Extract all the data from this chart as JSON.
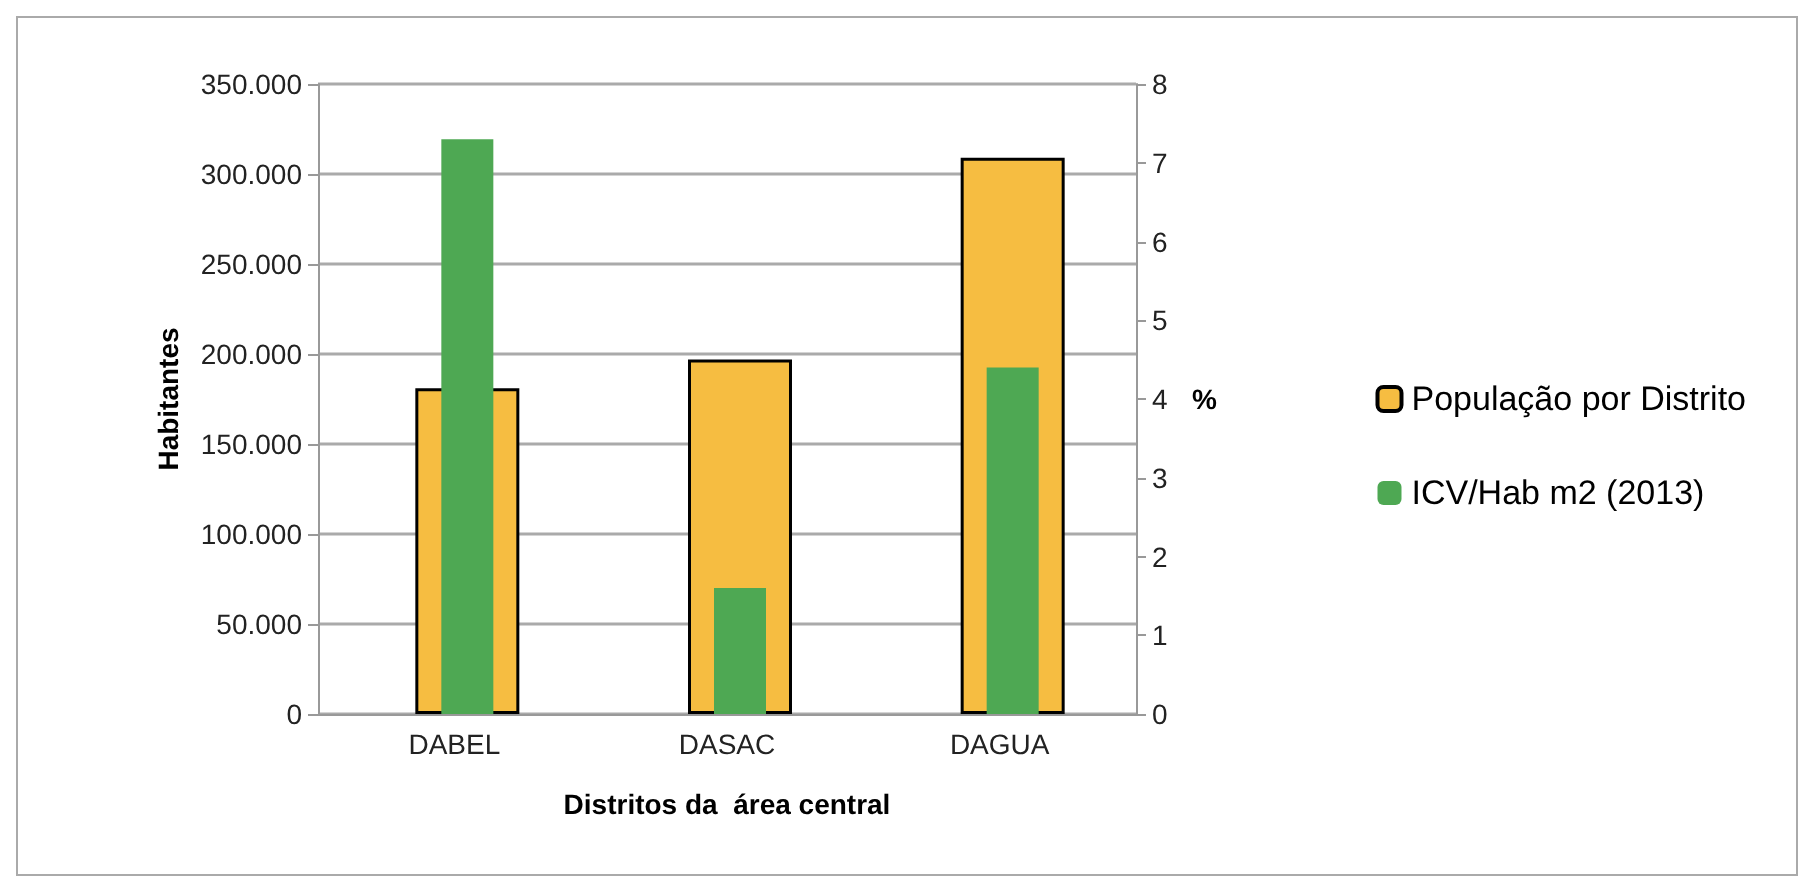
{
  "chart_data": {
    "type": "bar",
    "xlabel": "Distritos da  área central",
    "ylabel": "Habitantes",
    "y2label": "%",
    "categories": [
      "DABEL",
      "DASAC",
      "DAGUA"
    ],
    "series": [
      {
        "name": "População por Distrito",
        "color": "#f6bd41",
        "values": [
          181000,
          197000,
          309000
        ]
      },
      {
        "name": "ICV/Hab m2 (2013)",
        "color": "#4ea853",
        "values": [
          7.3,
          1.6,
          4.4
        ],
        "axis": "y2"
      }
    ],
    "ylim": [
      0,
      350000
    ],
    "yticks": [
      {
        "value": 0,
        "label": "0"
      },
      {
        "value": 50000,
        "label": "50.000"
      },
      {
        "value": 100000,
        "label": "100.000"
      },
      {
        "value": 150000,
        "label": "150.000"
      },
      {
        "value": 200000,
        "label": "200.000"
      },
      {
        "value": 250000,
        "label": "250.000"
      },
      {
        "value": 300000,
        "label": "300.000"
      },
      {
        "value": 350000,
        "label": "350.000"
      }
    ],
    "y2lim": [
      0,
      8
    ],
    "y2ticks": [
      0,
      1,
      2,
      3,
      4,
      5,
      6,
      7,
      8
    ],
    "grid": "y",
    "legend": "right"
  }
}
